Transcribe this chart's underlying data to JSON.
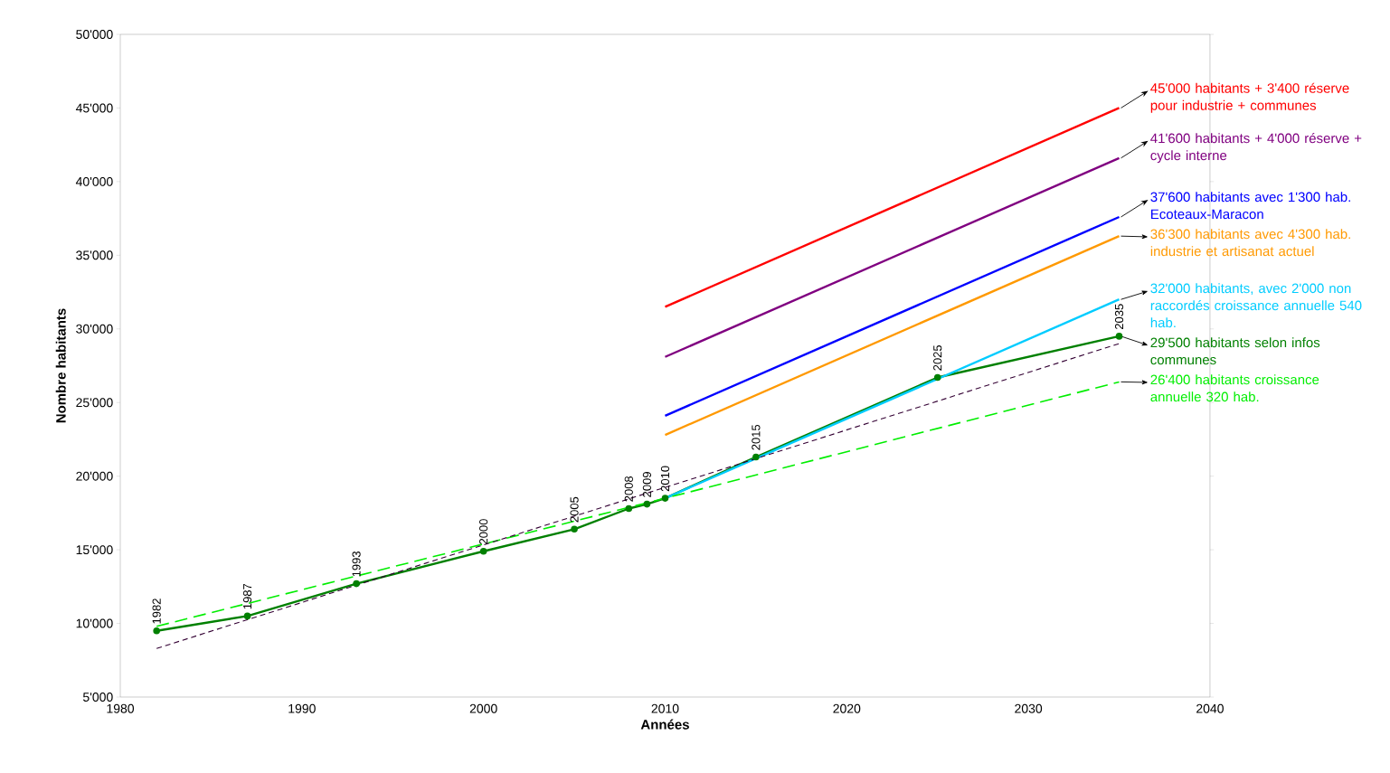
{
  "chart_data": {
    "type": "line",
    "xlabel": "Années",
    "ylabel": "Nombre habitants",
    "annotations": [
      {
        "text": "1982",
        "x": 1982,
        "y": 9500
      },
      {
        "text": "1987",
        "x": 1987,
        "y": 10500
      },
      {
        "text": "1993",
        "x": 1993,
        "y": 12700
      },
      {
        "text": "2000",
        "x": 2000,
        "y": 14900
      },
      {
        "text": "2005",
        "x": 2005,
        "y": 16400
      },
      {
        "text": "2008",
        "x": 2008,
        "y": 17800
      },
      {
        "text": "2009",
        "x": 2009,
        "y": 18100
      },
      {
        "text": "2010",
        "x": 2010,
        "y": 18500
      },
      {
        "text": "2015",
        "x": 2015,
        "y": 21300
      },
      {
        "text": "2025",
        "x": 2025,
        "y": 26700
      },
      {
        "text": "2035",
        "x": 2035,
        "y": 29500
      }
    ],
    "xlim": [
      1980,
      2040
    ],
    "xticks": [
      1980,
      1990,
      2000,
      2010,
      2020,
      2030,
      2040
    ],
    "ylim": [
      5000,
      50000
    ],
    "yticks": [
      {
        "value": 5000,
        "label": "5'000"
      },
      {
        "value": 10000,
        "label": "10'000"
      },
      {
        "value": 15000,
        "label": "15'000"
      },
      {
        "value": 20000,
        "label": "20'000"
      },
      {
        "value": 25000,
        "label": "25'000"
      },
      {
        "value": 30000,
        "label": "30'000"
      },
      {
        "value": 35000,
        "label": "35'000"
      },
      {
        "value": 40000,
        "label": "40'000"
      },
      {
        "value": 45000,
        "label": "45'000"
      },
      {
        "value": 50000,
        "label": "50'000"
      }
    ],
    "series": [
      {
        "name": "45'000 habitants + 3'400 réserve pour industrie + communes",
        "color": "#ff0000",
        "x": [
          2010,
          2035
        ],
        "values": [
          31500,
          45000
        ],
        "line_style": "solid",
        "marker": "none"
      },
      {
        "name": "41'600 habitants + 4'000 réserve + cycle interne",
        "color": "#800080",
        "x": [
          2010,
          2035
        ],
        "values": [
          28100,
          41600
        ],
        "line_style": "solid",
        "marker": "none"
      },
      {
        "name": "37'600 habitants avec 1'300 hab. Ecoteaux-Maracon",
        "color": "#0000ff",
        "x": [
          2010,
          2035
        ],
        "values": [
          24100,
          37600
        ],
        "line_style": "solid",
        "marker": "none"
      },
      {
        "name": "36'300 habitants avec 4'300 hab. industrie et artisanat actuel",
        "color": "#ff9900",
        "x": [
          2010,
          2035
        ],
        "values": [
          22800,
          36300
        ],
        "line_style": "solid",
        "marker": "none"
      },
      {
        "name": "32'000 habitants, avec 2'000 non raccordés croissance annuelle 540 hab.",
        "color": "#00ccff",
        "x": [
          2010,
          2035
        ],
        "values": [
          18500,
          32000
        ],
        "line_style": "solid",
        "marker": "none"
      },
      {
        "name": "29'500 habitants selon infos communes",
        "color": "#008000",
        "x": [
          1982,
          1987,
          1993,
          2000,
          2005,
          2008,
          2009,
          2010,
          2015,
          2025,
          2035
        ],
        "values": [
          9500,
          10500,
          12700,
          14900,
          16400,
          17800,
          18100,
          18500,
          21300,
          26700,
          29500
        ],
        "line_style": "solid",
        "marker": "circle"
      },
      {
        "name": "26'400 habitants croissance annuelle 320 hab.",
        "color": "#00ee00",
        "x": [
          1982,
          2010,
          2035
        ],
        "values": [
          9800,
          18500,
          26400
        ],
        "line_style": "dashed",
        "marker": "none"
      },
      {
        "color": "#330033",
        "x": [
          1982,
          2035
        ],
        "values": [
          8300,
          29000
        ],
        "line_style": "dashed",
        "marker": "none"
      }
    ]
  }
}
